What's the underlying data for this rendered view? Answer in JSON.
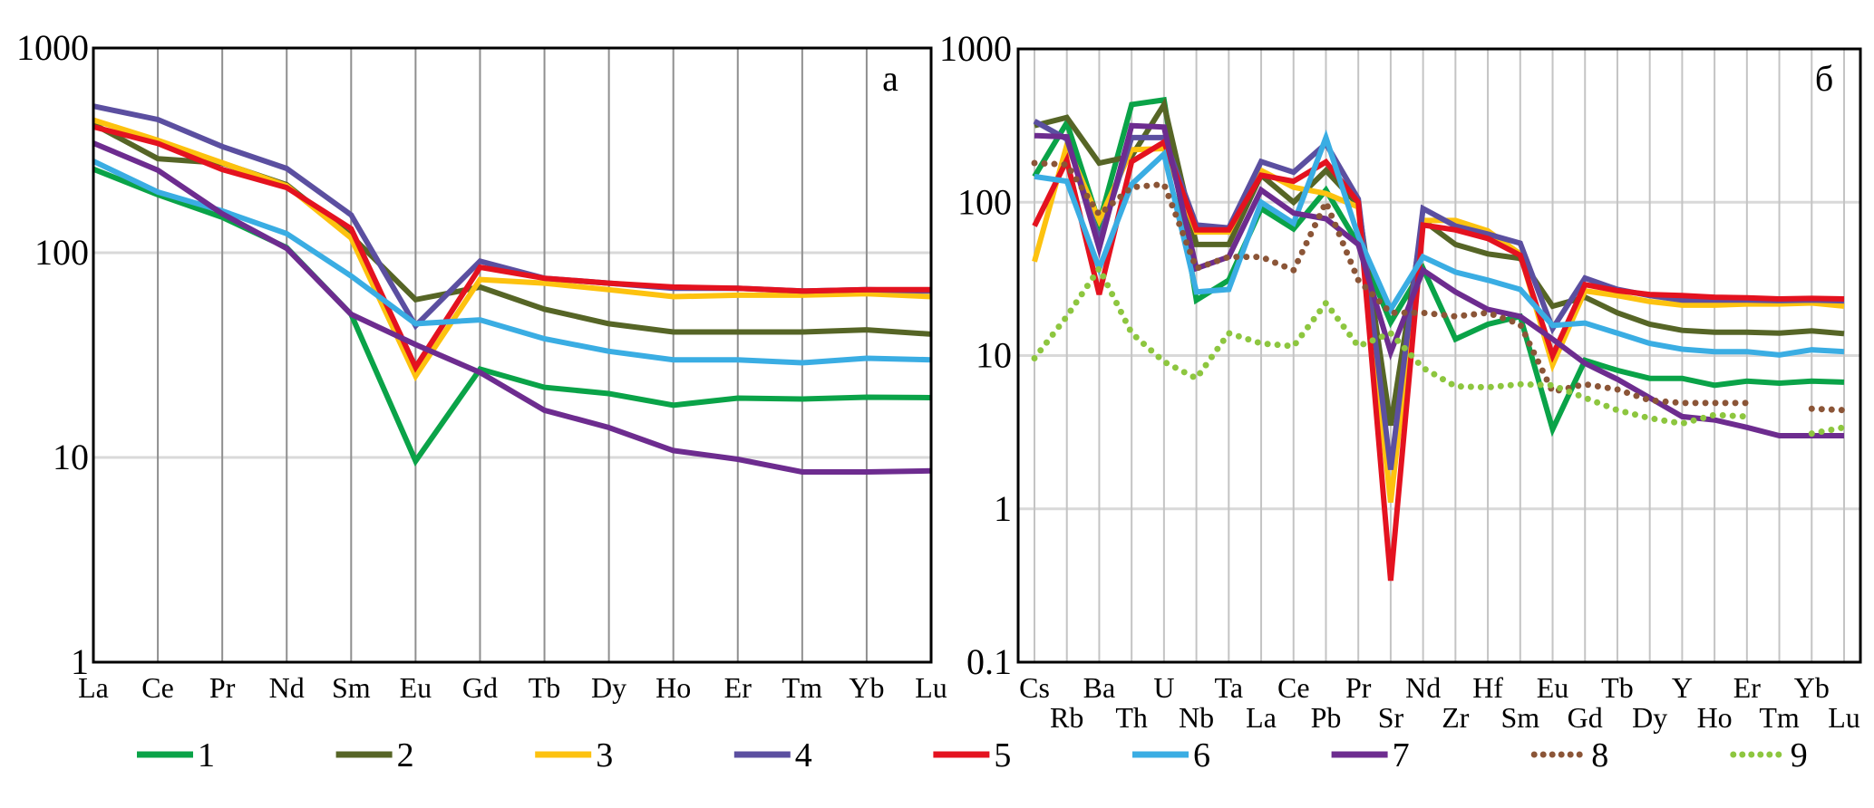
{
  "legend": [
    {
      "label": "1",
      "color": "#0aa348",
      "style": "solid"
    },
    {
      "label": "2",
      "color": "#566526",
      "style": "solid"
    },
    {
      "label": "3",
      "color": "#fdc20f",
      "style": "solid"
    },
    {
      "label": "4",
      "color": "#5b4fa0",
      "style": "solid"
    },
    {
      "label": "5",
      "color": "#e4121f",
      "style": "solid"
    },
    {
      "label": "6",
      "color": "#3aade3",
      "style": "solid"
    },
    {
      "label": "7",
      "color": "#6d2c8f",
      "style": "solid"
    },
    {
      "label": "8",
      "color": "#8b5537",
      "style": "dotted"
    },
    {
      "label": "9",
      "color": "#8dc63f",
      "style": "dotted"
    }
  ],
  "chart_data": [
    {
      "type": "line",
      "panel_label": "а",
      "title": "",
      "xlabel": "",
      "ylabel": "",
      "yscale": "log",
      "ylim": [
        1,
        1000
      ],
      "yticks": [
        "1",
        "10",
        "100",
        "1000"
      ],
      "grid": true,
      "legend_position": "bottom",
      "categories": [
        "La",
        "Ce",
        "Pr",
        "Nd",
        "Sm",
        "Eu",
        "Gd",
        "Tb",
        "Dy",
        "Ho",
        "Er",
        "Tm",
        "Yb",
        "Lu"
      ],
      "series": [
        {
          "name": "1",
          "values": [
            256,
            192,
            149,
            106,
            50,
            9.6,
            27,
            22,
            20.5,
            18,
            19.5,
            19.3,
            19.7,
            19.6
          ]
        },
        {
          "name": "2",
          "values": [
            425,
            288,
            274,
            215,
            121,
            59,
            68,
            53,
            45,
            41,
            41,
            41,
            42,
            40
          ]
        },
        {
          "name": "3",
          "values": [
            445,
            354,
            275,
            212,
            118,
            25,
            74,
            71,
            66,
            61,
            62,
            62,
            63,
            61
          ]
        },
        {
          "name": "4",
          "values": [
            520,
            447,
            330,
            258,
            153,
            44,
            91,
            75,
            71,
            67,
            67,
            65,
            66,
            65
          ]
        },
        {
          "name": "5",
          "values": [
            412,
            342,
            255,
            208,
            131,
            27.6,
            85,
            75,
            71,
            68,
            67,
            65,
            66,
            66
          ]
        },
        {
          "name": "6",
          "values": [
            280,
            198,
            160,
            124,
            77,
            45,
            47,
            38,
            33,
            30,
            30,
            29,
            30.5,
            30
          ]
        },
        {
          "name": "7",
          "values": [
            343,
            253,
            155,
            105,
            50,
            35.6,
            26,
            17,
            14,
            10.8,
            9.8,
            8.5,
            8.5,
            8.6
          ]
        }
      ]
    },
    {
      "type": "line",
      "panel_label": "б",
      "title": "",
      "xlabel": "",
      "ylabel": "",
      "yscale": "log",
      "ylim": [
        0.1,
        1000
      ],
      "yticks": [
        "0.1",
        "1",
        "10",
        "100",
        "1000"
      ],
      "grid": true,
      "legend_position": "bottom",
      "categories": [
        "Cs",
        "Rb",
        "Ba",
        "Th",
        "U",
        "Nb",
        "Ta",
        "La",
        "Ce",
        "Pb",
        "Pr",
        "Sr",
        "Nd",
        "Zr",
        "Hf",
        "Sm",
        "Eu",
        "Gd",
        "Tb",
        "Dy",
        "Y",
        "Ho",
        "Er",
        "Tm",
        "Yb",
        "Lu"
      ],
      "series": [
        {
          "name": "1",
          "values": [
            147,
            330,
            73,
            434,
            465,
            23,
            31,
            91,
            67,
            120,
            53,
            16.5,
            37,
            12.8,
            16,
            18,
            3.3,
            9.3,
            8,
            7.1,
            7.1,
            6.4,
            6.8,
            6.6,
            6.8,
            6.7
          ]
        },
        {
          "name": "2",
          "values": [
            316,
            357,
            180,
            200,
            434,
            53,
            53,
            150,
            100,
            161,
            96,
            3.5,
            76,
            53,
            46,
            43,
            21,
            24,
            19,
            16,
            14.6,
            14.2,
            14.2,
            14,
            14.5,
            13.9
          ]
        },
        {
          "name": "3",
          "values": [
            41,
            236,
            76,
            220,
            224,
            64,
            64,
            161,
            125,
            114,
            93,
            1.1,
            76,
            76,
            65,
            46,
            8.7,
            26.4,
            24.6,
            22.5,
            21.3,
            21.3,
            21.7,
            21.7,
            22,
            21
          ]
        },
        {
          "name": "4",
          "values": [
            338,
            258,
            56,
            264,
            264,
            71,
            68,
            184,
            157,
            241,
            105,
            1.8,
            91,
            70,
            62,
            54,
            15,
            32,
            27,
            24.6,
            23,
            23,
            23,
            22.8,
            23,
            22.7
          ]
        },
        {
          "name": "5",
          "values": [
            70,
            188,
            25,
            184,
            247,
            66,
            66,
            150,
            137,
            183,
            100,
            0.34,
            71,
            66,
            58,
            45,
            10,
            29,
            26.5,
            25,
            24.6,
            24,
            23.8,
            23.4,
            23.6,
            23.4
          ]
        },
        {
          "name": "6",
          "values": [
            147,
            137,
            37,
            131,
            206,
            26,
            27,
            100,
            73,
            264,
            60,
            20,
            44,
            35,
            31,
            27,
            15.7,
            16.3,
            14,
            12,
            11,
            10.6,
            10.6,
            10.1,
            10.9,
            10.6
          ]
        },
        {
          "name": "7",
          "values": [
            272,
            267,
            50,
            316,
            309,
            37,
            44,
            120,
            85,
            78,
            53,
            10.5,
            36,
            26,
            20,
            18,
            12.8,
            8.9,
            7,
            5.3,
            4,
            3.8,
            3.4,
            3.0,
            3.0,
            3.0
          ]
        },
        {
          "name": "8",
          "values": [
            180,
            176,
            83,
            125,
            131,
            37,
            44,
            44,
            36,
            100,
            31,
            19,
            19,
            18,
            19,
            16,
            5.8,
            6.5,
            6,
            5.1,
            4.9,
            4.9,
            4.9,
            null,
            4.5,
            4.4
          ]
        },
        {
          "name": "9",
          "values": [
            9.6,
            18,
            37,
            14,
            9.1,
            7.1,
            14,
            12,
            11.5,
            22,
            11.5,
            14,
            8.3,
            6.3,
            6.2,
            6.5,
            6.4,
            5.3,
            4.4,
            3.9,
            3.6,
            4.1,
            4.0,
            null,
            3.1,
            3.4
          ]
        }
      ]
    }
  ]
}
